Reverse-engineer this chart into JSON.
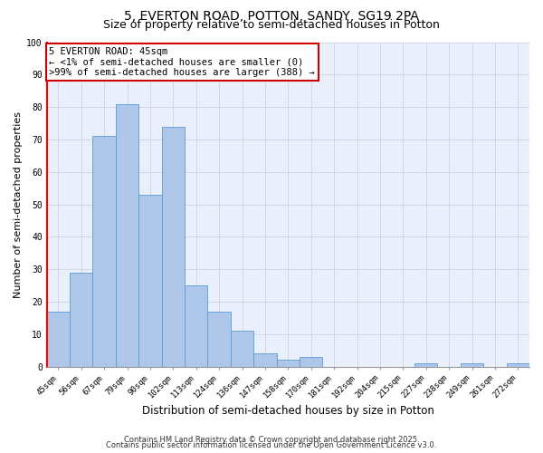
{
  "title1": "5, EVERTON ROAD, POTTON, SANDY, SG19 2PA",
  "title2": "Size of property relative to semi-detached houses in Potton",
  "xlabel": "Distribution of semi-detached houses by size in Potton",
  "ylabel": "Number of semi-detached properties",
  "categories": [
    "45sqm",
    "56sqm",
    "67sqm",
    "79sqm",
    "90sqm",
    "102sqm",
    "113sqm",
    "124sqm",
    "136sqm",
    "147sqm",
    "158sqm",
    "170sqm",
    "181sqm",
    "192sqm",
    "204sqm",
    "215sqm",
    "227sqm",
    "238sqm",
    "249sqm",
    "261sqm",
    "272sqm"
  ],
  "values": [
    17,
    29,
    71,
    81,
    53,
    74,
    25,
    17,
    11,
    4,
    2,
    3,
    0,
    0,
    0,
    0,
    1,
    0,
    1,
    0,
    1
  ],
  "bar_color": "#aec6e8",
  "bar_edge_color": "#5b9bd5",
  "annotation_text": "5 EVERTON ROAD: 45sqm\n← <1% of semi-detached houses are smaller (0)\n>99% of semi-detached houses are larger (388) →",
  "annotation_box_color": "#ffffff",
  "annotation_box_edge": "#cc0000",
  "ylim": [
    0,
    100
  ],
  "yticks": [
    0,
    10,
    20,
    30,
    40,
    50,
    60,
    70,
    80,
    90,
    100
  ],
  "grid_color": "#d0d8e8",
  "background_color": "#eaf0fb",
  "footer1": "Contains HM Land Registry data © Crown copyright and database right 2025.",
  "footer2": "Contains public sector information licensed under the Open Government Licence v3.0.",
  "title1_fontsize": 10,
  "title2_fontsize": 9,
  "tick_fontsize": 6.5,
  "ylabel_fontsize": 8,
  "xlabel_fontsize": 8.5,
  "annotation_fontsize": 7.5,
  "footer_fontsize": 6
}
